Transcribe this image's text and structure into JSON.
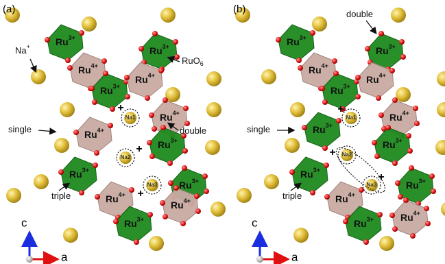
{
  "panels": [
    {
      "label": "(a)",
      "ions": [
        {
          "element": "Ru",
          "charge": "3+"
        },
        {
          "element": "Ru",
          "charge": "3+"
        },
        {
          "element": "Ru",
          "charge": "4+"
        },
        {
          "element": "Ru",
          "charge": "3+"
        },
        {
          "element": "Ru",
          "charge": "4+"
        },
        {
          "element": "Ru",
          "charge": "4+"
        },
        {
          "element": "Ru",
          "charge": "4+"
        },
        {
          "element": "Ru",
          "charge": "3+"
        },
        {
          "element": "Ru",
          "charge": "3+"
        },
        {
          "element": "Ru",
          "charge": "3+"
        },
        {
          "element": "Ru",
          "charge": "4+"
        },
        {
          "element": "Ru",
          "charge": "4+"
        },
        {
          "element": "Ru",
          "charge": "3+"
        }
      ],
      "annotations": [
        {
          "text": "Na",
          "sup": "+"
        },
        {
          "text": "RuO",
          "sub": "6"
        },
        {
          "text": "single"
        },
        {
          "text": "double"
        },
        {
          "text": "triple"
        }
      ],
      "sites": [
        "Na1",
        "Na2",
        "Na3"
      ],
      "charges": [
        "+",
        "+",
        "+"
      ],
      "axes": [
        "c",
        "a"
      ]
    },
    {
      "label": "(b)",
      "ions": [
        {
          "element": "Ru",
          "charge": "3+"
        },
        {
          "element": "Ru",
          "charge": "3+"
        },
        {
          "element": "Ru",
          "charge": "4+"
        },
        {
          "element": "Ru",
          "charge": "3+"
        },
        {
          "element": "Ru",
          "charge": "4+"
        },
        {
          "element": "Ru",
          "charge": "4+"
        },
        {
          "element": "Ru",
          "charge": "3+"
        },
        {
          "element": "Ru",
          "charge": "3+"
        },
        {
          "element": "Ru",
          "charge": "3+"
        },
        {
          "element": "Ru",
          "charge": "3+"
        },
        {
          "element": "Ru",
          "charge": "4+"
        },
        {
          "element": "Ru",
          "charge": "4+"
        },
        {
          "element": "Ru",
          "charge": "3+"
        }
      ],
      "annotations": [
        {
          "text": "double"
        },
        {
          "text": "single"
        },
        {
          "text": "triple"
        }
      ],
      "sites": [
        "Na1",
        "Na2",
        "Na3"
      ],
      "charges": [
        "+",
        "+",
        "+"
      ],
      "axes": [
        "c",
        "a"
      ]
    }
  ]
}
